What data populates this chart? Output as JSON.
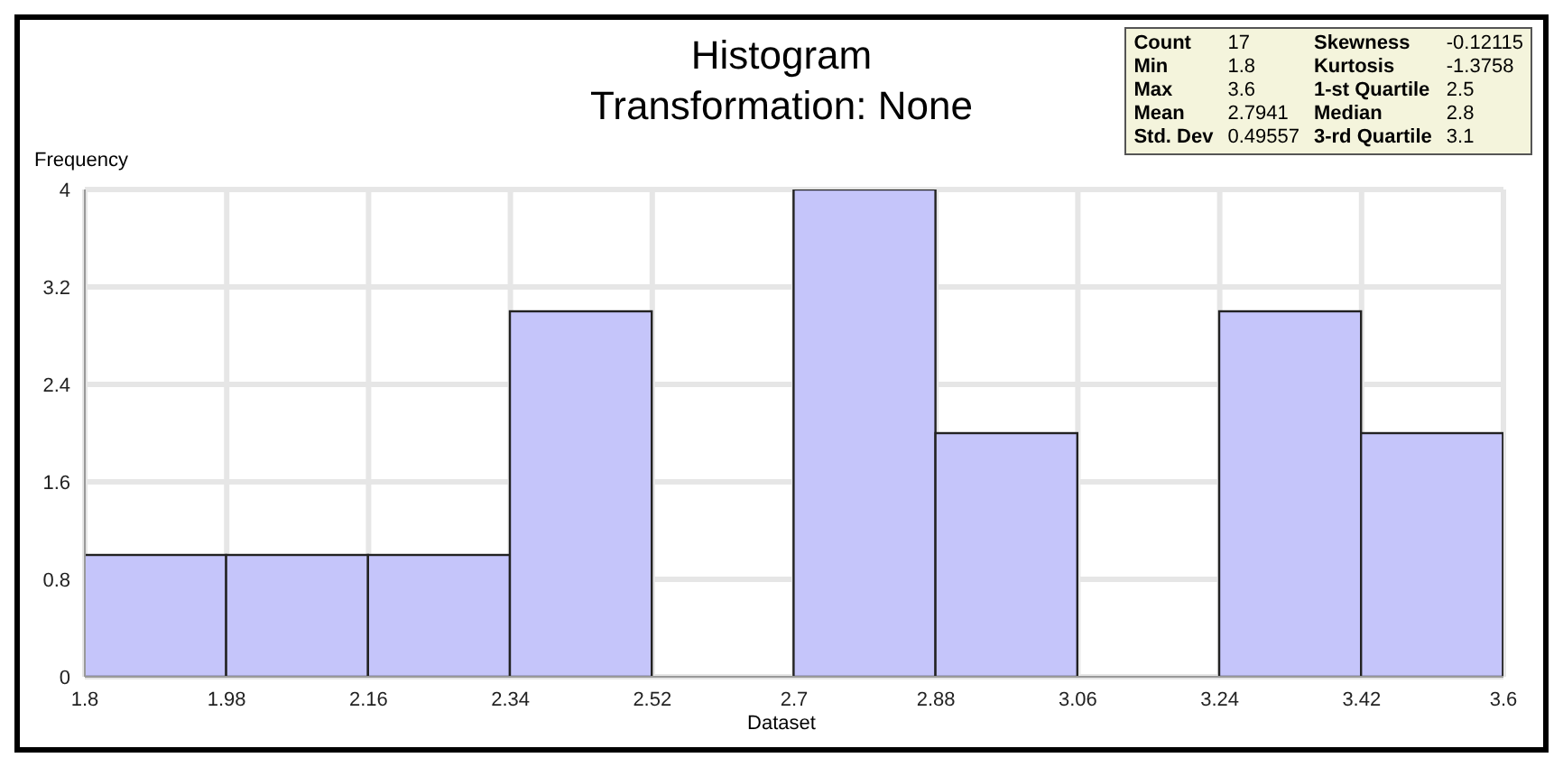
{
  "chart_data": {
    "type": "histogram",
    "title": "Histogram",
    "subtitle": "Transformation: None",
    "xlabel": "Dataset",
    "ylabel": "Frequency",
    "bins": [
      1.8,
      1.98,
      2.16,
      2.34,
      2.52,
      2.7,
      2.88,
      3.06,
      3.24,
      3.42,
      3.6
    ],
    "values": [
      1,
      1,
      1,
      3,
      0,
      4,
      2,
      0,
      3,
      2
    ],
    "color": "#c5c5fa",
    "xlim": [
      1.8,
      3.6
    ],
    "xticks": [
      1.8,
      1.98,
      2.16,
      2.34,
      2.52,
      2.7,
      2.88,
      3.06,
      3.24,
      3.42,
      3.6
    ],
    "ylim": [
      0,
      4
    ],
    "yticks": [
      0,
      0.8,
      1.6,
      2.4,
      3.2,
      4
    ],
    "grid": true,
    "annotations": [
      "Count",
      "17",
      "Skewness",
      "-0.12115",
      "Min",
      "1.8",
      "Kurtosis",
      "-1.3758",
      "Max",
      "3.6",
      "1-st Quartile",
      "2.5",
      "Mean",
      "2.7941",
      "Median",
      "2.8",
      "Std. Dev",
      "0.49557",
      "3-rd Quartile",
      "3.1"
    ]
  }
}
